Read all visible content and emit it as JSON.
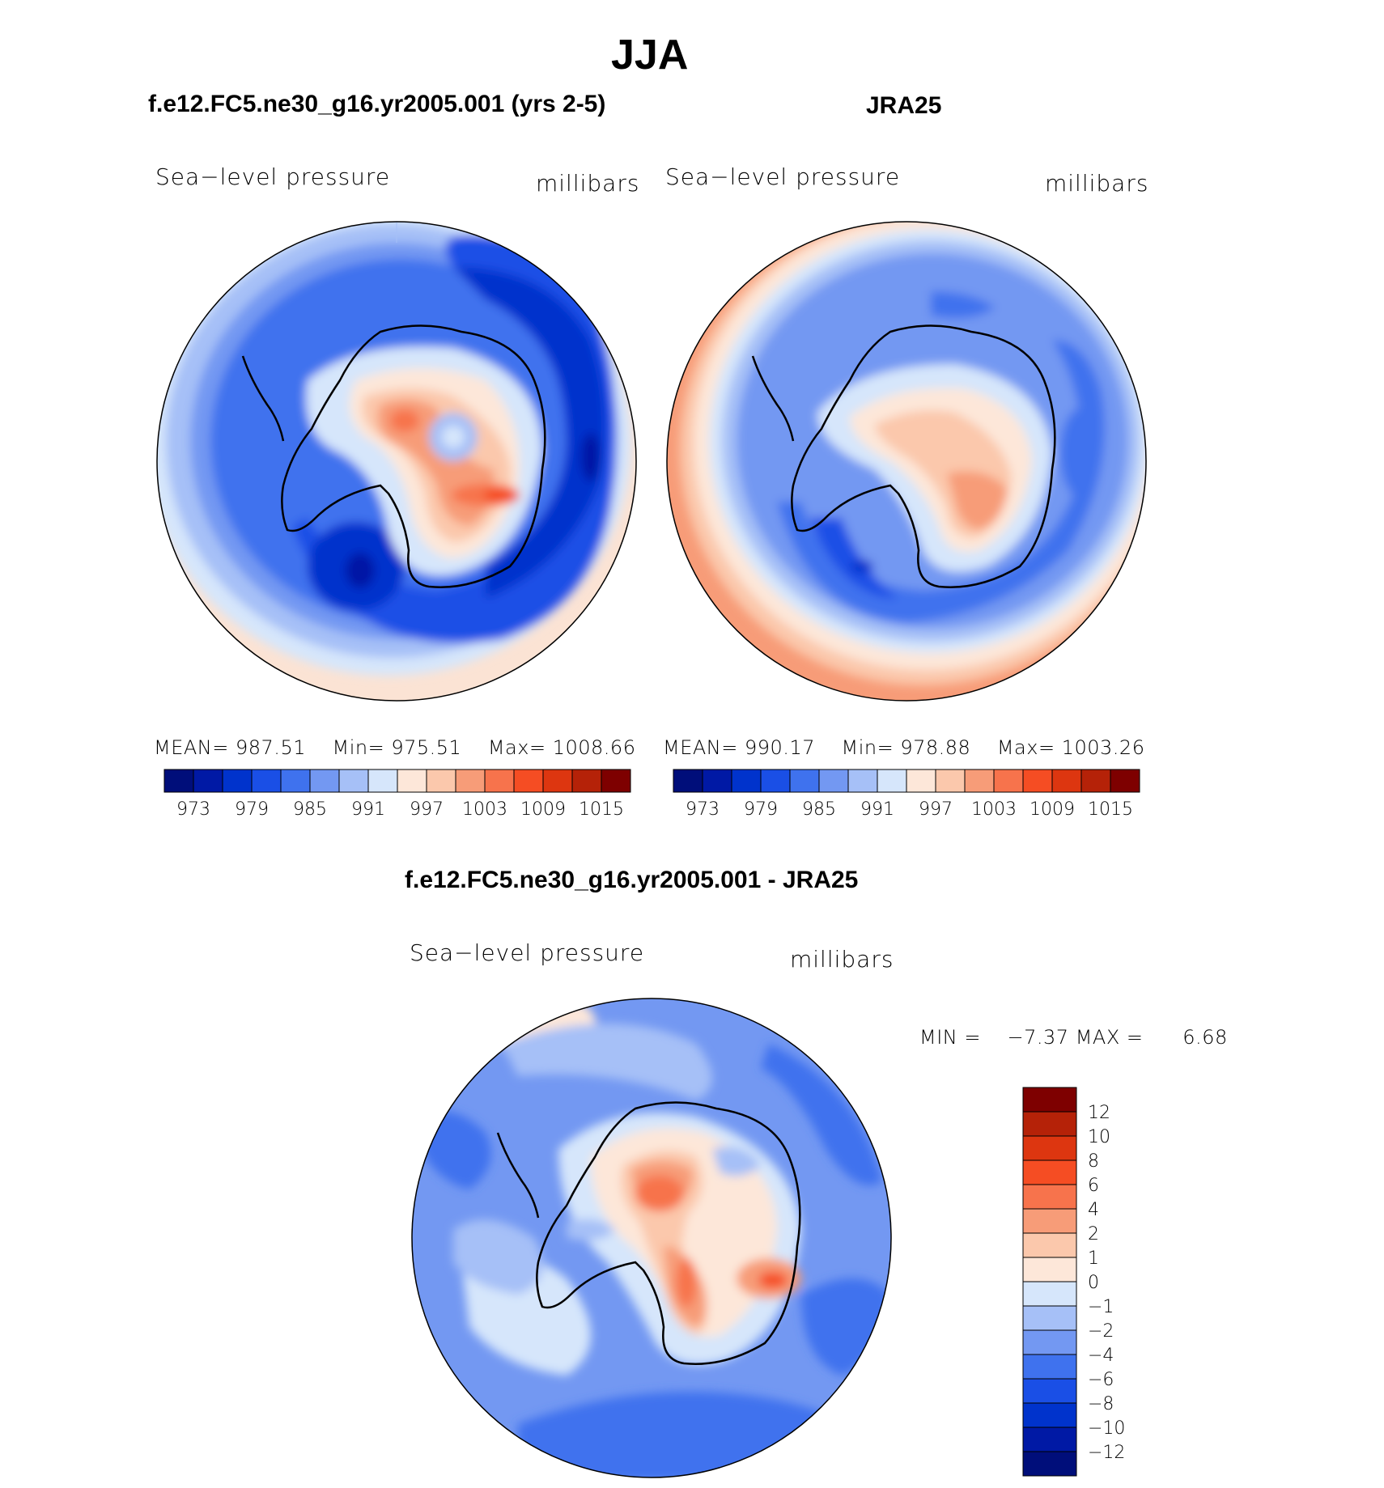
{
  "figure": {
    "title": "JJA",
    "panels": [
      {
        "case_title": "f.e12.FC5.ne30_g16.yr2005.001 (yrs 2-5)",
        "variable": "Sea−level pressure",
        "units": "millibars",
        "stats": {
          "mean_label": "MEAN=",
          "mean": "987.51",
          "min_label": "Min=",
          "min": "975.51",
          "max_label": "Max=",
          "max": "1008.66"
        }
      },
      {
        "case_title": "JRA25",
        "variable": "Sea−level pressure",
        "units": "millibars",
        "stats": {
          "mean_label": "MEAN=",
          "mean": "990.17",
          "min_label": "Min=",
          "min": "978.88",
          "max_label": "Max=",
          "max": "1003.26"
        }
      }
    ],
    "colorbar_ticks": [
      "973",
      "979",
      "985",
      "991",
      "997",
      "1003",
      "1009",
      "1015"
    ],
    "colorbar_colors": [
      "#000e7a",
      "#0019a5",
      "#0033cc",
      "#1a4fe6",
      "#3f72ee",
      "#7398f2",
      "#a6c0f7",
      "#d6e6fb",
      "#fde7d9",
      "#fbc8ac",
      "#f79c78",
      "#f7734c",
      "#f54d23",
      "#dd3610",
      "#b52208",
      "#7e0000"
    ],
    "difference": {
      "title": "f.e12.FC5.ne30_g16.yr2005.001 - JRA25",
      "variable": "Sea−level pressure",
      "units": "millibars",
      "min_label": "MIN =",
      "min": "−7.37",
      "max_label": "MAX =",
      "max": "6.68",
      "colorbar_ticks": [
        "12",
        "10",
        "8",
        "6",
        "4",
        "2",
        "1",
        "0",
        "−1",
        "−2",
        "−4",
        "−6",
        "−8",
        "−10",
        "−12"
      ],
      "colorbar_colors": [
        "#7e0000",
        "#b52208",
        "#dd3610",
        "#f54d23",
        "#f7734c",
        "#f79c78",
        "#fbc8ac",
        "#fde7d9",
        "#d6e6fb",
        "#a6c0f7",
        "#7398f2",
        "#3f72ee",
        "#1a4fe6",
        "#0033cc",
        "#0019a5",
        "#000e7a"
      ]
    }
  }
}
